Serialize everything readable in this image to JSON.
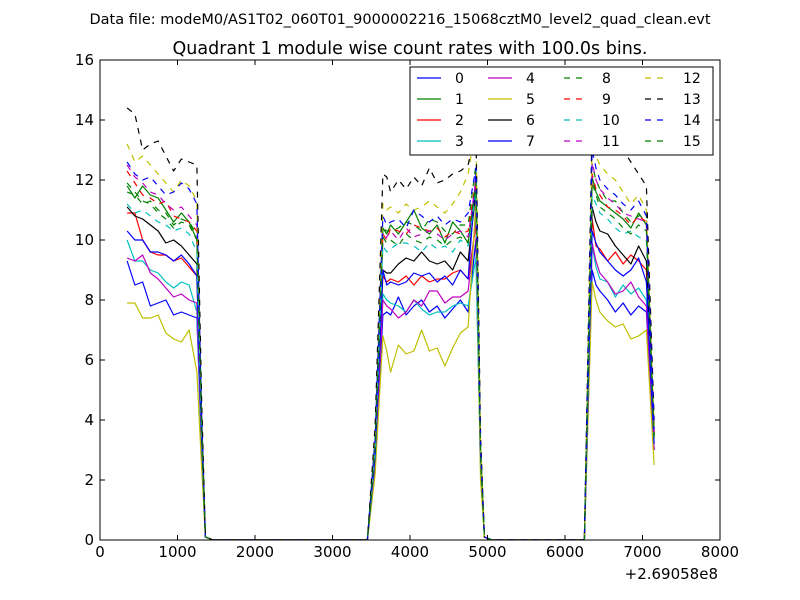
{
  "figure": {
    "suptitle": "Data file: modeM0/AS1T02_060T01_9000002216_15068cztM0_level2_quad_clean.evt"
  },
  "chart_data": {
    "type": "line",
    "title": "Quadrant 1 module wise count rates with 100.0s bins.",
    "xlabel": "",
    "ylabel": "",
    "x_offset_label": "+2.69058e8",
    "xlim": [
      0,
      8000
    ],
    "ylim": [
      0,
      16
    ],
    "xticks": [
      0,
      1000,
      2000,
      3000,
      4000,
      5000,
      6000,
      7000,
      8000
    ],
    "yticks": [
      0,
      2,
      4,
      6,
      8,
      10,
      12,
      14,
      16
    ],
    "legend": {
      "placement": "top-right",
      "columns": 4
    },
    "x": [
      350,
      450,
      550,
      650,
      750,
      850,
      950,
      1050,
      1150,
      1250,
      1310,
      1360,
      1460,
      3350,
      3450,
      3550,
      3650,
      3700,
      3750,
      3850,
      3950,
      4050,
      4150,
      4250,
      4350,
      4450,
      4550,
      4650,
      4750,
      4850,
      4910,
      4960,
      5060,
      6250,
      6350,
      6400,
      6450,
      6550,
      6650,
      6750,
      6850,
      6950,
      7050,
      7150
    ],
    "series": [
      {
        "name": "0",
        "color": "#0000ff",
        "dash": "solid",
        "values": [
          9.3,
          8.5,
          8.6,
          7.8,
          7.9,
          8.0,
          7.5,
          7.6,
          7.5,
          7.4,
          3.0,
          0.1,
          0.0,
          0.0,
          0.0,
          2.5,
          7.5,
          7.6,
          7.5,
          8.1,
          7.5,
          7.8,
          8.0,
          7.6,
          7.8,
          7.4,
          7.7,
          8.0,
          7.6,
          10.0,
          2.5,
          0.1,
          0.0,
          0.0,
          9.0,
          8.5,
          8.3,
          8.0,
          7.6,
          7.9,
          7.5,
          7.8,
          7.6,
          3.0
        ]
      },
      {
        "name": "1",
        "color": "#008000",
        "dash": "solid",
        "values": [
          11.8,
          11.4,
          11.8,
          11.5,
          11.4,
          11.0,
          10.6,
          10.9,
          10.6,
          10.0,
          4.0,
          0.1,
          0.0,
          0.0,
          0.0,
          3.0,
          10.4,
          10.2,
          10.5,
          10.2,
          10.6,
          11.0,
          10.4,
          10.2,
          10.5,
          9.9,
          10.6,
          10.3,
          9.9,
          11.8,
          3.0,
          0.1,
          0.0,
          0.0,
          12.1,
          11.6,
          11.3,
          11.1,
          10.9,
          10.7,
          10.4,
          10.9,
          10.5,
          3.5
        ]
      },
      {
        "name": "2",
        "color": "#ff0000",
        "dash": "solid",
        "values": [
          10.9,
          10.9,
          10.0,
          9.6,
          9.5,
          9.5,
          9.3,
          9.4,
          9.1,
          8.8,
          3.5,
          0.1,
          0.0,
          0.0,
          0.0,
          3.0,
          8.8,
          8.6,
          8.7,
          8.6,
          8.8,
          8.5,
          8.8,
          8.6,
          8.7,
          8.7,
          8.9,
          9.0,
          8.7,
          10.5,
          2.8,
          0.1,
          0.0,
          0.0,
          10.7,
          9.8,
          9.7,
          9.3,
          9.6,
          9.2,
          9.5,
          9.3,
          9.0,
          3.0
        ]
      },
      {
        "name": "3",
        "color": "#00bfbf",
        "dash": "solid",
        "values": [
          10.0,
          9.3,
          9.3,
          9.0,
          8.9,
          8.6,
          8.4,
          8.6,
          8.5,
          7.6,
          3.0,
          0.1,
          0.0,
          0.0,
          0.0,
          2.5,
          8.2,
          8.0,
          7.9,
          7.8,
          7.6,
          8.0,
          7.7,
          7.5,
          7.6,
          7.6,
          7.8,
          7.9,
          7.8,
          9.4,
          2.5,
          0.1,
          0.0,
          0.0,
          9.8,
          9.1,
          8.7,
          8.6,
          8.1,
          8.5,
          8.2,
          8.4,
          8.0,
          3.0
        ]
      },
      {
        "name": "4",
        "color": "#bf00bf",
        "dash": "solid",
        "values": [
          9.4,
          9.3,
          9.5,
          8.9,
          8.7,
          8.4,
          8.1,
          8.2,
          8.0,
          7.9,
          3.2,
          0.1,
          0.0,
          0.0,
          0.0,
          2.6,
          8.0,
          7.8,
          7.7,
          7.4,
          7.6,
          8.0,
          7.8,
          8.3,
          8.3,
          7.9,
          8.1,
          8.1,
          8.3,
          10.7,
          2.7,
          0.1,
          0.0,
          0.0,
          9.9,
          9.3,
          8.9,
          8.6,
          8.2,
          8.3,
          8.6,
          8.1,
          7.8,
          3.0
        ]
      },
      {
        "name": "5",
        "color": "#bfbf00",
        "dash": "solid",
        "values": [
          7.9,
          7.9,
          7.4,
          7.4,
          7.5,
          6.9,
          6.7,
          6.6,
          7.0,
          5.6,
          2.5,
          0.1,
          0.0,
          0.0,
          0.0,
          2.2,
          6.8,
          6.3,
          5.6,
          6.5,
          6.2,
          6.3,
          7.0,
          6.3,
          6.4,
          5.8,
          6.4,
          6.9,
          7.1,
          11.2,
          2.0,
          0.1,
          0.0,
          0.0,
          8.6,
          8.0,
          7.6,
          7.3,
          7.1,
          7.2,
          6.7,
          6.8,
          7.0,
          2.5
        ]
      },
      {
        "name": "6",
        "color": "#000000",
        "dash": "solid",
        "values": [
          11.1,
          10.8,
          10.7,
          10.5,
          10.3,
          9.9,
          10.0,
          9.8,
          9.5,
          9.2,
          3.6,
          0.1,
          0.0,
          0.0,
          0.0,
          3.0,
          9.0,
          8.9,
          8.9,
          9.2,
          9.4,
          9.3,
          9.6,
          9.3,
          9.2,
          9.3,
          9.0,
          9.6,
          9.3,
          11.6,
          3.0,
          0.1,
          0.0,
          0.0,
          11.1,
          10.6,
          10.3,
          10.2,
          9.8,
          9.5,
          9.2,
          9.8,
          9.3,
          3.5
        ]
      },
      {
        "name": "7",
        "color": "#0000ff",
        "dash": "solid",
        "values": [
          10.3,
          10.0,
          10.0,
          9.6,
          9.6,
          9.5,
          9.3,
          9.5,
          9.2,
          8.8,
          3.5,
          0.1,
          0.0,
          0.0,
          0.0,
          2.8,
          9.0,
          8.5,
          8.6,
          8.5,
          8.6,
          8.9,
          8.8,
          8.9,
          8.6,
          8.8,
          8.5,
          9.0,
          8.7,
          12.2,
          2.8,
          0.1,
          0.0,
          0.0,
          10.3,
          9.9,
          9.6,
          9.3,
          9.0,
          8.8,
          9.0,
          9.4,
          8.6,
          3.2
        ]
      },
      {
        "name": "8",
        "color": "#008000",
        "dash": "dashed",
        "values": [
          11.6,
          11.5,
          11.2,
          11.3,
          11.0,
          10.9,
          10.5,
          10.7,
          10.6,
          10.2,
          4.0,
          0.1,
          0.0,
          0.0,
          0.0,
          3.2,
          10.4,
          10.3,
          10.3,
          10.4,
          10.6,
          10.5,
          10.3,
          10.7,
          10.6,
          10.3,
          10.2,
          10.5,
          10.5,
          12.5,
          3.0,
          0.1,
          0.0,
          0.0,
          12.5,
          12.0,
          11.7,
          11.3,
          11.3,
          10.9,
          10.6,
          10.8,
          10.9,
          3.5
        ]
      },
      {
        "name": "9",
        "color": "#ff0000",
        "dash": "dashed",
        "values": [
          12.3,
          11.9,
          11.5,
          11.4,
          11.2,
          11.3,
          10.8,
          10.7,
          10.6,
          10.3,
          4.0,
          0.1,
          0.0,
          0.0,
          0.0,
          3.2,
          10.2,
          10.0,
          10.4,
          10.3,
          10.2,
          10.5,
          10.4,
          10.3,
          10.4,
          10.1,
          10.3,
          10.2,
          10.3,
          12.0,
          3.0,
          0.1,
          0.0,
          0.0,
          12.2,
          11.7,
          11.5,
          11.1,
          11.0,
          10.8,
          10.5,
          10.8,
          10.6,
          3.5
        ]
      },
      {
        "name": "10",
        "color": "#00bfbf",
        "dash": "dashed",
        "values": [
          11.2,
          10.9,
          11.0,
          10.8,
          10.6,
          10.5,
          10.3,
          10.4,
          10.2,
          9.6,
          3.8,
          0.1,
          0.0,
          0.0,
          0.0,
          3.0,
          9.8,
          9.6,
          9.7,
          9.9,
          9.9,
          9.8,
          9.6,
          9.9,
          9.7,
          9.8,
          9.6,
          10.0,
          9.8,
          11.6,
          2.9,
          0.1,
          0.0,
          0.0,
          11.5,
          11.2,
          10.9,
          10.7,
          10.4,
          10.2,
          10.3,
          10.1,
          10.0,
          3.3
        ]
      },
      {
        "name": "11",
        "color": "#bf00bf",
        "dash": "dashed",
        "values": [
          12.5,
          12.1,
          11.9,
          11.6,
          11.5,
          11.2,
          11.0,
          11.1,
          10.8,
          10.5,
          4.1,
          0.1,
          0.0,
          0.0,
          0.0,
          3.3,
          10.0,
          10.1,
          10.3,
          10.0,
          10.4,
          10.1,
          10.2,
          10.3,
          10.2,
          10.0,
          10.2,
          10.3,
          10.1,
          12.0,
          3.0,
          0.1,
          0.0,
          0.0,
          12.6,
          12.0,
          11.7,
          11.4,
          11.2,
          10.9,
          10.8,
          10.7,
          10.6,
          3.6
        ]
      },
      {
        "name": "12",
        "color": "#bfbf00",
        "dash": "dashed",
        "values": [
          13.2,
          12.6,
          12.8,
          12.5,
          12.2,
          11.9,
          11.6,
          12.0,
          11.8,
          11.3,
          4.5,
          0.1,
          0.0,
          0.0,
          0.0,
          3.5,
          11.2,
          11.0,
          11.1,
          10.9,
          11.2,
          11.0,
          11.1,
          11.3,
          11.1,
          10.9,
          11.2,
          11.6,
          12.2,
          13.8,
          3.3,
          0.1,
          0.0,
          0.0,
          13.2,
          12.8,
          12.5,
          12.2,
          12.0,
          11.6,
          11.2,
          11.5,
          11.0,
          3.8
        ]
      },
      {
        "name": "13",
        "color": "#000000",
        "dash": "dashed",
        "values": [
          14.4,
          14.2,
          13.0,
          13.2,
          13.3,
          12.8,
          12.3,
          12.7,
          12.6,
          12.5,
          4.8,
          0.1,
          0.0,
          0.0,
          0.0,
          3.8,
          12.2,
          12.1,
          11.6,
          12.0,
          11.7,
          12.1,
          11.8,
          12.4,
          11.9,
          12.0,
          12.2,
          12.3,
          12.5,
          13.7,
          3.5,
          0.1,
          0.0,
          0.0,
          13.9,
          13.5,
          13.2,
          13.6,
          13.3,
          13.0,
          12.6,
          12.2,
          11.8,
          4.0
        ]
      },
      {
        "name": "14",
        "color": "#0000ff",
        "dash": "dashed",
        "values": [
          12.6,
          12.2,
          12.0,
          12.1,
          11.8,
          11.5,
          11.6,
          11.9,
          11.7,
          11.2,
          4.3,
          0.1,
          0.0,
          0.0,
          0.0,
          3.4,
          10.8,
          10.5,
          10.6,
          10.7,
          10.4,
          11.0,
          10.8,
          10.6,
          10.8,
          10.5,
          10.7,
          10.6,
          10.9,
          12.4,
          3.1,
          0.1,
          0.0,
          0.0,
          13.0,
          12.4,
          12.0,
          11.7,
          11.5,
          11.2,
          11.0,
          11.3,
          10.8,
          3.7
        ]
      },
      {
        "name": "15",
        "color": "#008000",
        "dash": "dashed",
        "values": [
          11.9,
          11.6,
          11.3,
          11.2,
          10.9,
          10.7,
          10.4,
          10.6,
          10.5,
          10.0,
          3.9,
          0.1,
          0.0,
          0.0,
          0.0,
          3.1,
          10.1,
          9.9,
          10.0,
          9.8,
          10.2,
          10.0,
          9.9,
          10.1,
          10.0,
          9.8,
          10.0,
          10.1,
          9.9,
          11.9,
          2.9,
          0.1,
          0.0,
          0.0,
          11.9,
          11.5,
          11.1,
          10.9,
          10.7,
          10.4,
          10.2,
          10.5,
          10.3,
          3.4
        ]
      }
    ]
  }
}
